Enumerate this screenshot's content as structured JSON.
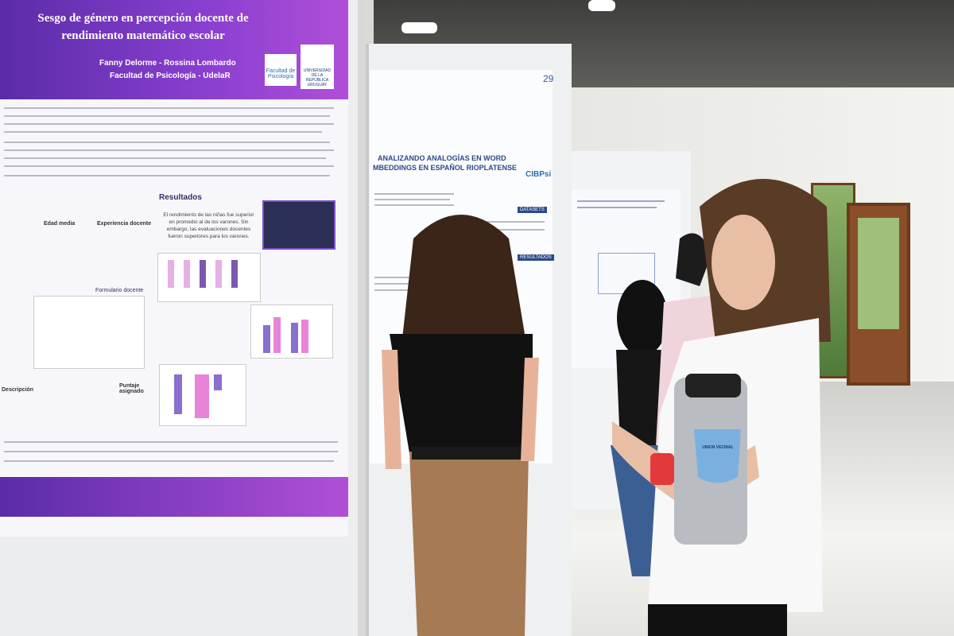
{
  "poster_left": {
    "title": "Sesgo de género en percepción docente de rendimiento matemático escolar",
    "authors": "Fanny Delorme - Rossina Lombardo",
    "affiliation": "Facultad de Psicología - UdelaR",
    "logo_faculty": "Facultad de Psicología",
    "logo_university": "UNIVERSIDAD DE LA REPÚBLICA URUGUAY",
    "section_results": "Resultados",
    "results_text": "El rendimiento de las niñas fue superior en promedio al de los varones. Sin embargo, las evaluaciones docentes fueron superiores para los varones.",
    "table_headers": [
      "Edad media",
      "Experiencia docente"
    ],
    "form_label": "Formulario docente",
    "score_header": "Puntaje asignado",
    "description_header": "Descripción"
  },
  "poster_center": {
    "number": "29",
    "title_line1": "ANALIZANDO ANALOGÍAS EN WORD",
    "title_line2": "MBEDDINGS EN ESPAÑOL RIOPLATENSE",
    "logo": "CIBPsi",
    "section_datasets": "DATASETS",
    "section_results": "RESULTADOS"
  },
  "badge": "UNION VECINAL"
}
